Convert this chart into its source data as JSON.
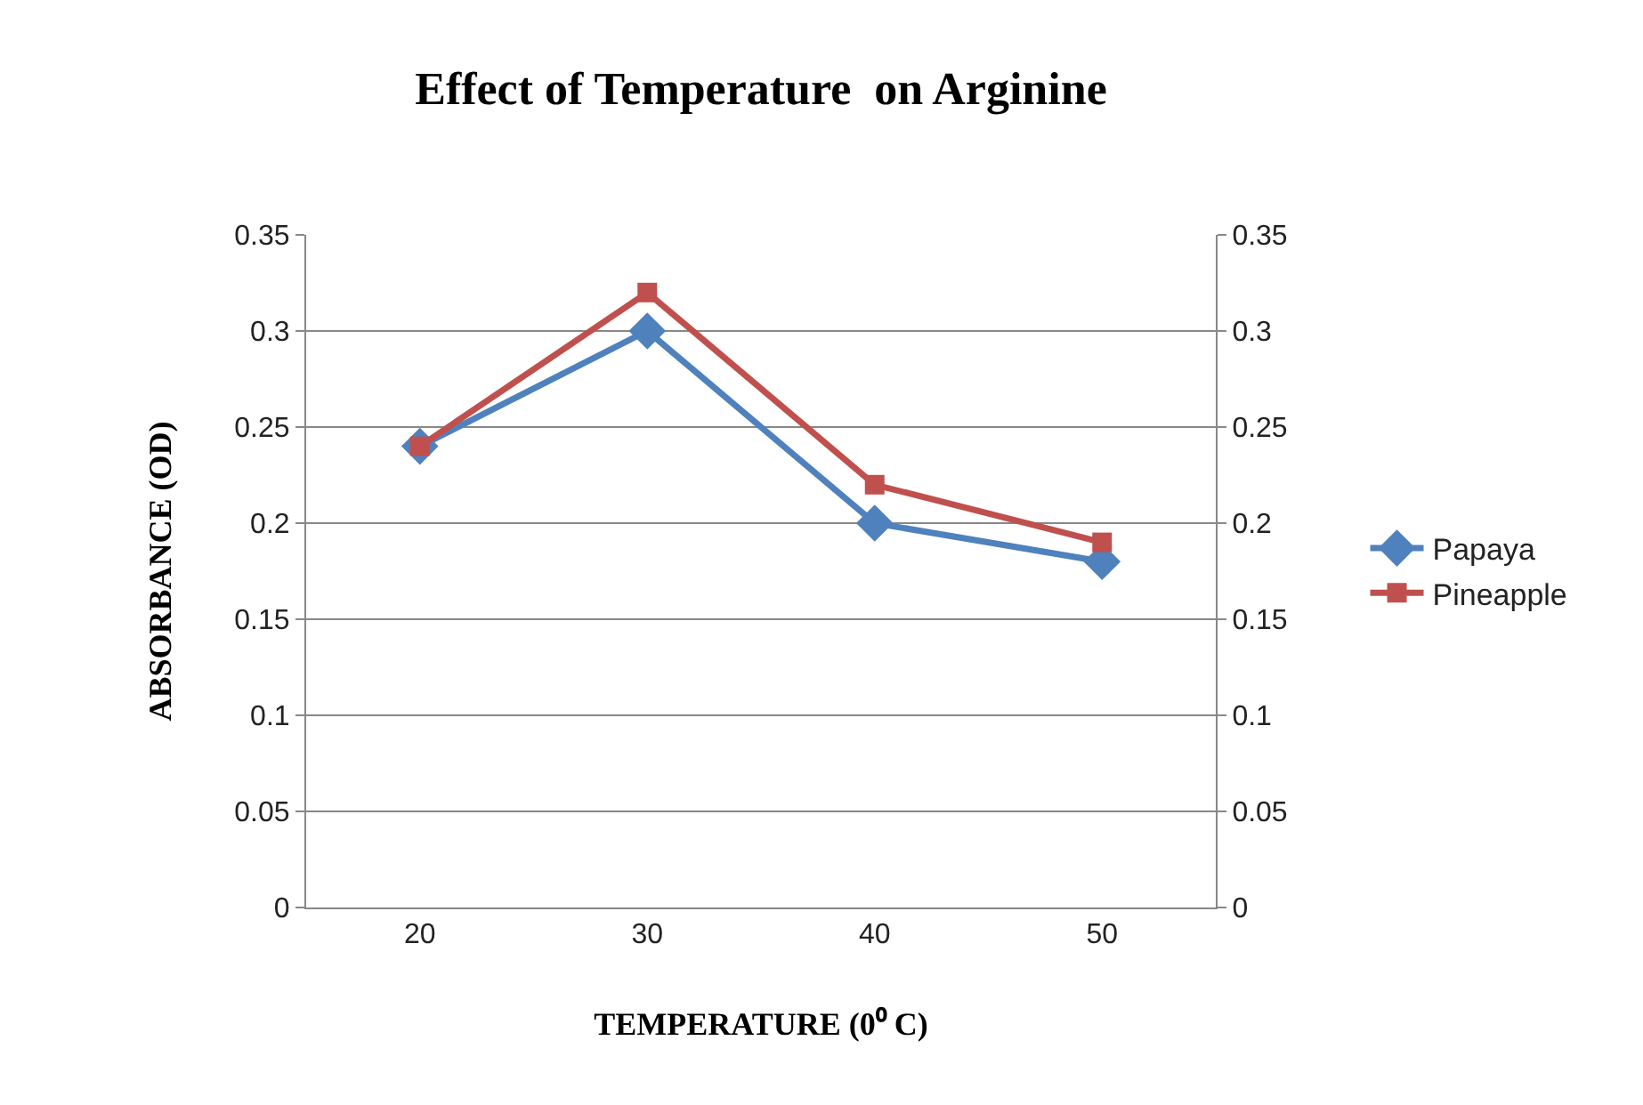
{
  "chart_data": {
    "type": "line",
    "title": "Effect of Temperature  on Arginine",
    "xlabel": "TEMPERATURE (0⁰ C)",
    "ylabel": "ABSORBANCE (OD)",
    "categories": [
      "20",
      "30",
      "40",
      "50"
    ],
    "series": [
      {
        "name": "Papaya",
        "color": "#4f81bd",
        "marker": "diamond",
        "values": [
          0.24,
          0.3,
          0.2,
          0.18
        ]
      },
      {
        "name": "Pineapple",
        "color": "#c0504d",
        "marker": "square",
        "values": [
          0.24,
          0.32,
          0.22,
          0.19
        ]
      }
    ],
    "ylim": [
      0,
      0.35
    ],
    "yticks": [
      0,
      0.05,
      0.1,
      0.15,
      0.2,
      0.25,
      0.3,
      0.35
    ],
    "y2lim": [
      0,
      0.35
    ],
    "y2ticks": [
      0,
      0.05,
      0.1,
      0.15,
      0.2,
      0.25,
      0.3,
      0.35
    ],
    "grid": "y",
    "legend": "right"
  }
}
